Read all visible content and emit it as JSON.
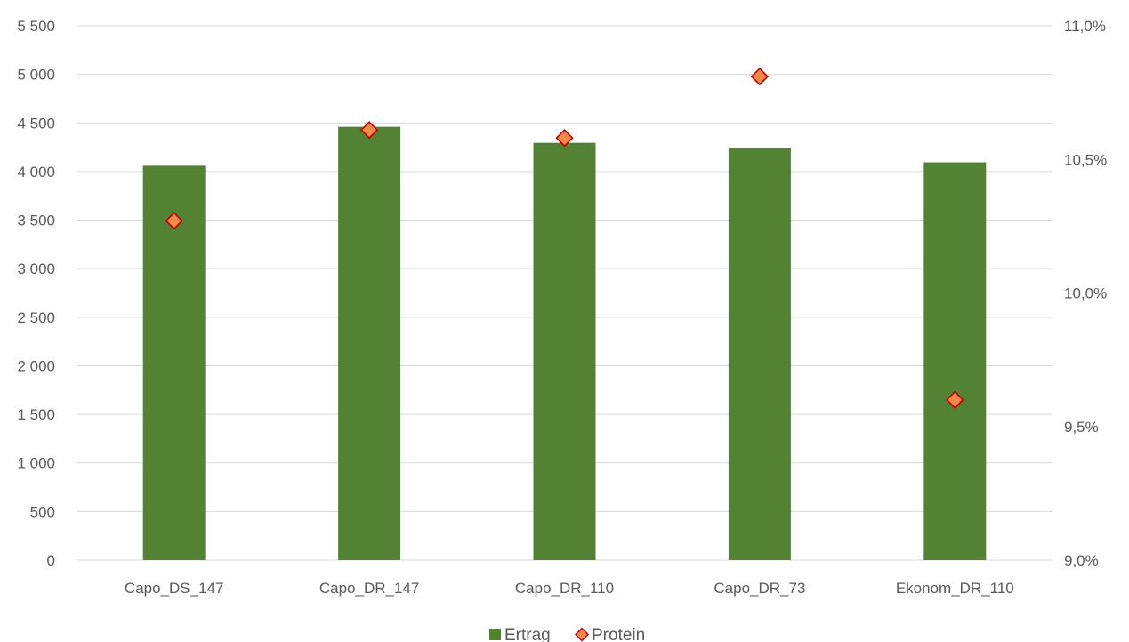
{
  "chart_data": {
    "type": "bar",
    "title": "",
    "xlabel": "",
    "ylabel": "",
    "categories": [
      "Capo_DS_147",
      "Capo_DR_147",
      "Capo_DR_110",
      "Capo_DR_73",
      "Ekonom_DR_110"
    ],
    "series": [
      {
        "name": "Ertrag",
        "type": "bar",
        "axis": "left",
        "values": [
          4060,
          4460,
          4295,
          4240,
          4095
        ],
        "color": "#548235"
      },
      {
        "name": "Protein",
        "type": "scatter",
        "marker": "diamond",
        "axis": "right",
        "values": [
          10.27,
          10.61,
          10.58,
          10.81,
          9.6
        ],
        "color": "#F4894A",
        "edge_color": "#C00000"
      }
    ],
    "ylim": [
      0,
      5500
    ],
    "y_ticks": [
      0,
      500,
      1000,
      1500,
      2000,
      2500,
      3000,
      3500,
      4000,
      4500,
      5000,
      5500
    ],
    "y_tick_labels": [
      "0",
      "500",
      "1 000",
      "1 500",
      "2 000",
      "2 500",
      "3 000",
      "3 500",
      "4 000",
      "4 500",
      "5 000",
      "5 500"
    ],
    "y2lim": [
      9.0,
      11.0
    ],
    "y2_ticks": [
      9.0,
      9.5,
      10.0,
      10.5,
      11.0
    ],
    "y2_tick_labels": [
      "9,0%",
      "9,5%",
      "10,0%",
      "10,5%",
      "11,0%"
    ],
    "grid": true,
    "gridline_color": "#D9D9D9",
    "legend": "bottom-center"
  }
}
